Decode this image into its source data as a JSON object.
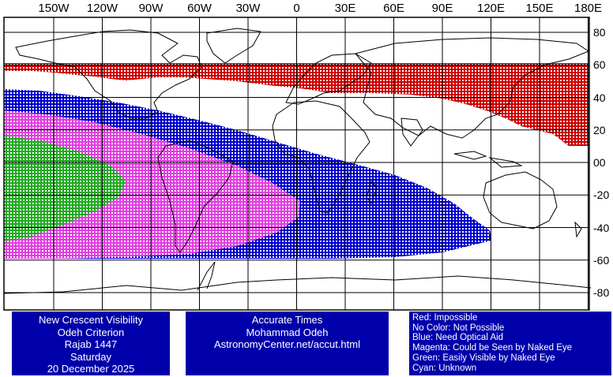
{
  "longitude_labels": [
    "150W",
    "120W",
    "90W",
    "60W",
    "30W",
    "0",
    "30E",
    "60E",
    "90E",
    "120E",
    "150E",
    "180E"
  ],
  "latitude_labels": [
    "80",
    "60",
    "40",
    "20",
    "00",
    "-20",
    "-40",
    "-60",
    "-80"
  ],
  "info_panel": {
    "line1": "New Crescent Visibility",
    "line2": "Odeh Criterion",
    "line3": "Rajab 1447",
    "line4": "Saturday",
    "line5": "20 December 2025"
  },
  "times_panel": {
    "line1": "Accurate Times",
    "line2": "Mohammad Odeh",
    "line3": "AstronomyCenter.net/accut.html"
  },
  "legend": {
    "red": "Red: Impossible",
    "none": "No Color: Not Possible",
    "blue": "Blue: Need Optical Aid",
    "magenta": "Magenta: Could be Seen by Naked Eye",
    "green": "Green: Easily Visible by Naked Eye",
    "cyan": "Cyan: Unknown"
  },
  "colors": {
    "impossible": "#cc0000",
    "optical_aid": "#0000cc",
    "naked_eye_maybe": "#e040e0",
    "naked_eye_easy": "#22aa22",
    "panel_bg": "#0000aa"
  }
}
